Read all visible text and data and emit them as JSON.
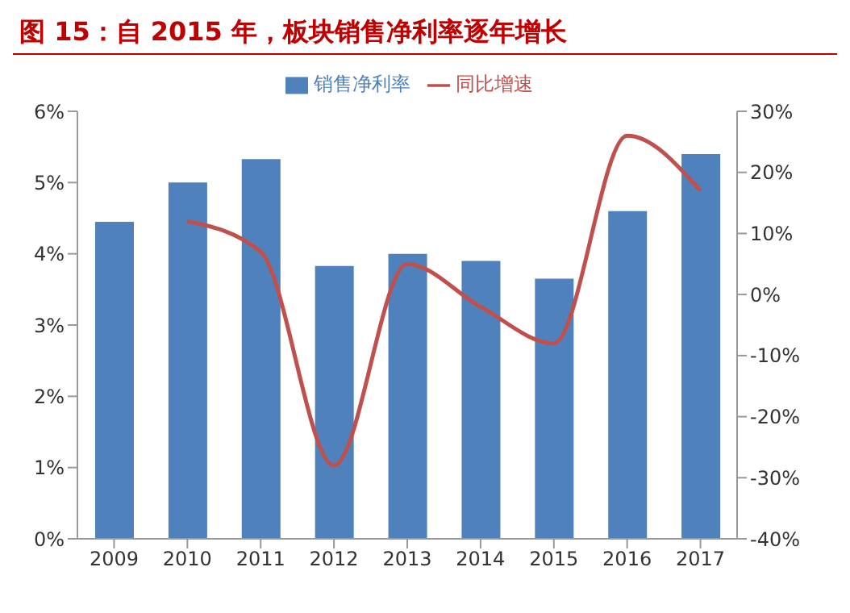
{
  "chart_data": {
    "type": "bar",
    "title": "图 15：自 2015 年，板块销售净利率逐年增长",
    "categories": [
      "2009",
      "2010",
      "2011",
      "2012",
      "2013",
      "2014",
      "2015",
      "2016",
      "2017"
    ],
    "series": [
      {
        "name": "销售净利率",
        "color": "#4f81bd",
        "values": [
          4.45,
          5.0,
          5.33,
          3.83,
          4.0,
          3.9,
          3.65,
          4.6,
          5.4
        ]
      },
      {
        "name": "同比增速",
        "type": "line",
        "axis": "y2",
        "color": "#c0504d",
        "values": [
          null,
          12,
          7,
          -28,
          5,
          -2,
          -8,
          26,
          17
        ]
      }
    ],
    "ylim": [
      0,
      6
    ],
    "yticks": [
      {
        "value": 0,
        "label": "0%"
      },
      {
        "value": 1,
        "label": "1%"
      },
      {
        "value": 2,
        "label": "2%"
      },
      {
        "value": 3,
        "label": "3%"
      },
      {
        "value": 4,
        "label": "4%"
      },
      {
        "value": 5,
        "label": "5%"
      },
      {
        "value": 6,
        "label": "6%"
      }
    ],
    "y2lim": [
      -40,
      30
    ],
    "y2ticks": [
      {
        "value": -40,
        "label": "-40%"
      },
      {
        "value": -30,
        "label": "-30%"
      },
      {
        "value": -20,
        "label": "-20%"
      },
      {
        "value": -10,
        "label": "-10%"
      },
      {
        "value": 0,
        "label": "0%"
      },
      {
        "value": 10,
        "label": "10%"
      },
      {
        "value": 20,
        "label": "20%"
      },
      {
        "value": 30,
        "label": "30%"
      }
    ],
    "grid": false,
    "legend": "top",
    "marker": "none",
    "line_style": "solid"
  }
}
